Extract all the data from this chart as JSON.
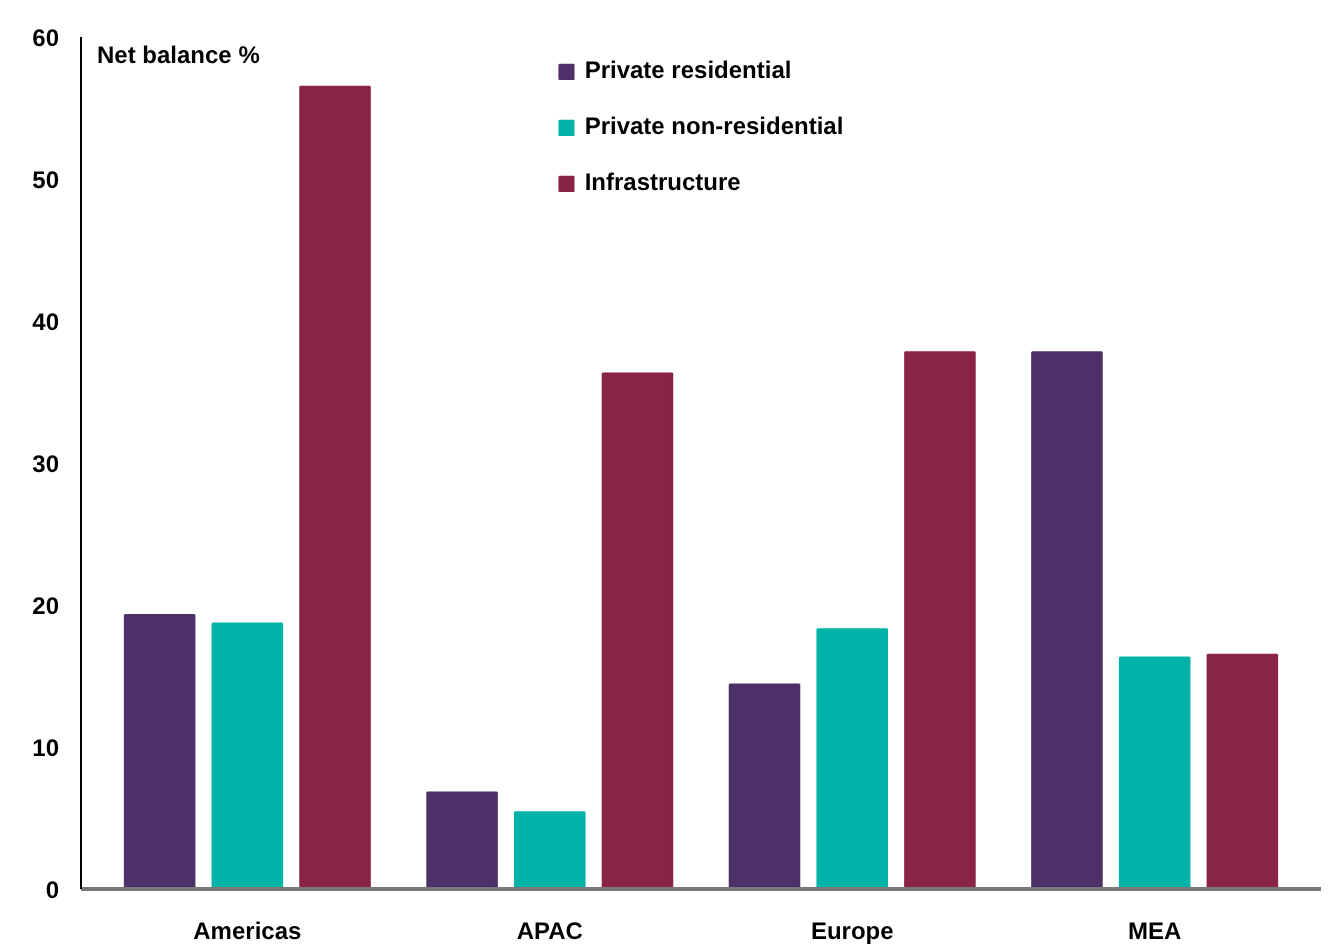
{
  "chart_data": {
    "type": "bar",
    "ylabel": "Net balance %",
    "categories": [
      "Americas",
      "APAC",
      "Europe",
      "MEA"
    ],
    "series": [
      {
        "name": "Private residential",
        "color": "#4d3068",
        "values": [
          19.3,
          6.8,
          14.4,
          37.8
        ]
      },
      {
        "name": "Private non-residential",
        "color": "#00b3a9",
        "values": [
          18.7,
          5.4,
          18.3,
          16.3
        ]
      },
      {
        "name": "Infrastructure",
        "color": "#8a2444",
        "values": [
          56.5,
          36.3,
          37.8,
          16.5
        ]
      }
    ],
    "ylim": [
      0,
      60
    ],
    "yticks": [
      0,
      10,
      20,
      30,
      40,
      50,
      60
    ],
    "grid": false,
    "legend": "top"
  }
}
